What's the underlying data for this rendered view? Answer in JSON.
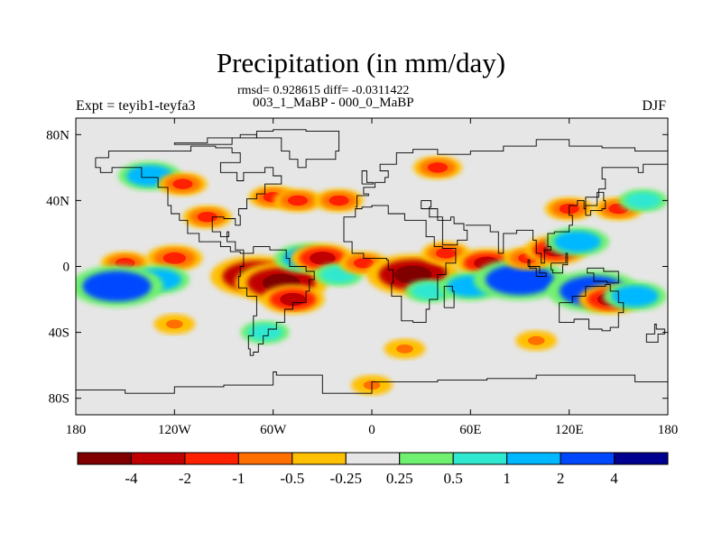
{
  "header": {
    "title": "Precipitation (in mm/day)",
    "stats": "rmsd= 0.928615 diff= -0.0311422",
    "subtitle": "003_1_MaBP - 000_0_MaBP",
    "expt": "Expt = teyib1-teyfa3",
    "season": "DJF"
  },
  "map": {
    "xticks": [
      {
        "lon": -180,
        "label": "180"
      },
      {
        "lon": -120,
        "label": "120W"
      },
      {
        "lon": -60,
        "label": "60W"
      },
      {
        "lon": 0,
        "label": "0"
      },
      {
        "lon": 60,
        "label": "60E"
      },
      {
        "lon": 120,
        "label": "120E"
      },
      {
        "lon": 180,
        "label": "180"
      }
    ],
    "yticks": [
      {
        "lat": 80,
        "label": "80N"
      },
      {
        "lat": 40,
        "label": "40N"
      },
      {
        "lat": 0,
        "label": "0"
      },
      {
        "lat": -40,
        "label": "40S"
      },
      {
        "lat": -80,
        "label": "80S"
      }
    ],
    "lon_range": [
      -180,
      180
    ],
    "lat_range": [
      -90,
      90
    ],
    "background_color": "#e6e6e6"
  },
  "colorbar": {
    "colors": [
      "#800000",
      "#c00000",
      "#ff2000",
      "#ff7000",
      "#ffc000",
      "#e6e6e6",
      "#70f070",
      "#30e8d0",
      "#00b8ff",
      "#0048ff",
      "#000090"
    ],
    "labels": [
      "-4",
      "-2",
      "-1",
      "-0.5",
      "-0.25",
      "0.25",
      "0.5",
      "1",
      "2",
      "4"
    ]
  },
  "chart_data": {
    "type": "contour_map",
    "variable": "Precipitation difference",
    "units": "mm/day",
    "levels": [
      -4,
      -2,
      -1,
      -0.5,
      -0.25,
      0.25,
      0.5,
      1,
      2,
      4
    ],
    "anomalies": [
      {
        "lon": -120,
        "lat": 5,
        "value": -1.5
      },
      {
        "lon": -150,
        "lat": 2,
        "value": -1
      },
      {
        "lon": -130,
        "lat": -8,
        "value": 2
      },
      {
        "lon": -155,
        "lat": -12,
        "value": 4
      },
      {
        "lon": -100,
        "lat": 30,
        "value": -1
      },
      {
        "lon": -135,
        "lat": 55,
        "value": 2
      },
      {
        "lon": -115,
        "lat": 50,
        "value": -1
      },
      {
        "lon": -70,
        "lat": -6,
        "value": -4
      },
      {
        "lon": -55,
        "lat": -10,
        "value": -4
      },
      {
        "lon": -48,
        "lat": -20,
        "value": -2
      },
      {
        "lon": -65,
        "lat": -40,
        "value": 1
      },
      {
        "lon": -40,
        "lat": 5,
        "value": 2
      },
      {
        "lon": -30,
        "lat": 5,
        "value": -2
      },
      {
        "lon": -20,
        "lat": -5,
        "value": 1
      },
      {
        "lon": -5,
        "lat": 2,
        "value": -1
      },
      {
        "lon": -60,
        "lat": 42,
        "value": -1
      },
      {
        "lon": -45,
        "lat": 40,
        "value": -1
      },
      {
        "lon": -20,
        "lat": 40,
        "value": -1
      },
      {
        "lon": 25,
        "lat": -5,
        "value": -4
      },
      {
        "lon": 35,
        "lat": -15,
        "value": 1
      },
      {
        "lon": 45,
        "lat": 8,
        "value": -1
      },
      {
        "lon": 70,
        "lat": 2,
        "value": -2
      },
      {
        "lon": 60,
        "lat": -12,
        "value": 2
      },
      {
        "lon": 90,
        "lat": -8,
        "value": 4
      },
      {
        "lon": 95,
        "lat": 5,
        "value": -1
      },
      {
        "lon": 112,
        "lat": 10,
        "value": -2
      },
      {
        "lon": 125,
        "lat": 15,
        "value": 2
      },
      {
        "lon": 135,
        "lat": -15,
        "value": 4
      },
      {
        "lon": 145,
        "lat": -20,
        "value": -2
      },
      {
        "lon": 160,
        "lat": -18,
        "value": 2
      },
      {
        "lon": 150,
        "lat": 35,
        "value": -1
      },
      {
        "lon": 165,
        "lat": 40,
        "value": 1
      },
      {
        "lon": 120,
        "lat": 35,
        "value": -1
      },
      {
        "lon": 40,
        "lat": 60,
        "value": -1
      },
      {
        "lon": -120,
        "lat": -35,
        "value": -0.5
      },
      {
        "lon": 20,
        "lat": -50,
        "value": -0.5
      },
      {
        "lon": 100,
        "lat": -45,
        "value": -0.5
      },
      {
        "lon": 0,
        "lat": -72,
        "value": -0.5
      }
    ]
  }
}
